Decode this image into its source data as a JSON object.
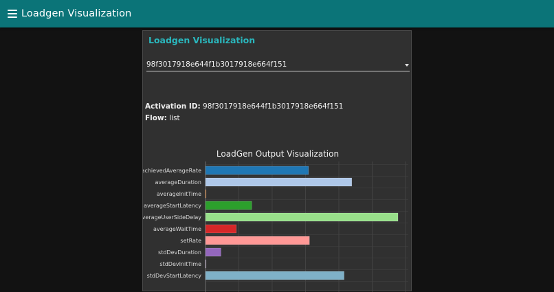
{
  "app": {
    "title": "Loadgen Visualization",
    "menu_icon": "hamburger-menu-icon"
  },
  "card": {
    "title": "Loadgen Visualization",
    "select": {
      "value": "98f3017918e644f1b3017918e664f151"
    },
    "activation": {
      "label": "Activation ID:",
      "value": "98f3017918e644f1b3017918e664f151"
    },
    "flow": {
      "label": "Flow:",
      "value": "list"
    }
  },
  "colors": {
    "appbar": "#0b7478",
    "card_title": "#2ab7bd"
  },
  "chart_data": {
    "type": "bar",
    "orientation": "horizontal",
    "title": "LoadGen Output Visualization",
    "xlim": [
      0,
      100
    ],
    "grid": true,
    "categories": [
      "achievedAverageRate",
      "averageDuration",
      "averageInitTime",
      "averageStartLatency",
      "averageUserSideDelay",
      "averageWaitTime",
      "setRate",
      "stdDevDuration",
      "stdDevInitTime",
      "stdDevStartLatency"
    ],
    "values": [
      53.5,
      76,
      0,
      24,
      100,
      16,
      54,
      8,
      0,
      72
    ],
    "colors": [
      "#1f77b4",
      "#aec7e8",
      "#ff7f0e",
      "#2ca02c",
      "#98df8a",
      "#d62728",
      "#ff9896",
      "#9467bd",
      "#c5b0d5",
      "#7fb1c8"
    ]
  }
}
